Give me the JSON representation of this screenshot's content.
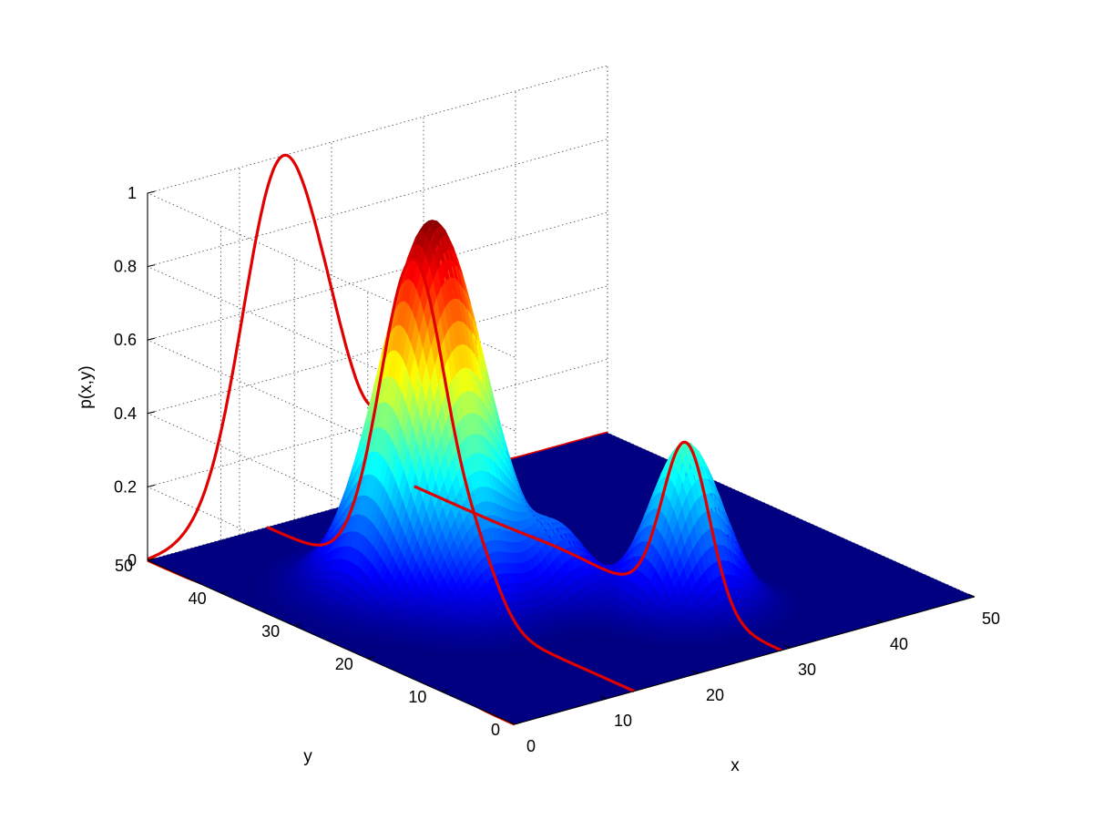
{
  "chart_data": {
    "type": "surface3d",
    "title": "",
    "xlabel": "x",
    "ylabel": "y",
    "zlabel": "p(x,y)",
    "xlim": [
      0,
      50
    ],
    "ylim": [
      0,
      50
    ],
    "zlim": [
      0,
      1
    ],
    "xticks": [
      0,
      10,
      20,
      30,
      40,
      50
    ],
    "yticks": [
      0,
      10,
      20,
      30,
      40,
      50
    ],
    "zticks": [
      "0",
      "0.2",
      "0.4",
      "0.6",
      "0.8",
      "1"
    ],
    "grid": true,
    "colormap": "jet",
    "surface_color_low": "#00008f",
    "surface_color_high": "#800000",
    "series": [
      {
        "peaks": [
          {
            "x": 15,
            "y": 30,
            "height": 1.0,
            "width": 4.5
          },
          {
            "x": 29,
            "y": 13,
            "height": 0.45,
            "width": 3.2
          },
          {
            "x": 21,
            "y": 20,
            "height": 0.18,
            "width": 2.5
          },
          {
            "x": 13,
            "y": 21,
            "height": 0.12,
            "width": 3.0
          }
        ]
      }
    ],
    "marginal_curves": {
      "color": "#e00000",
      "on_yz_wall": "projection of p(x,y) along x, drawn on the x = 0 wall",
      "on_xz_wall": "projection of p(x,y) along y, drawn on the y = 50 wall",
      "x_cross_sections": [
        13,
        29
      ]
    }
  }
}
